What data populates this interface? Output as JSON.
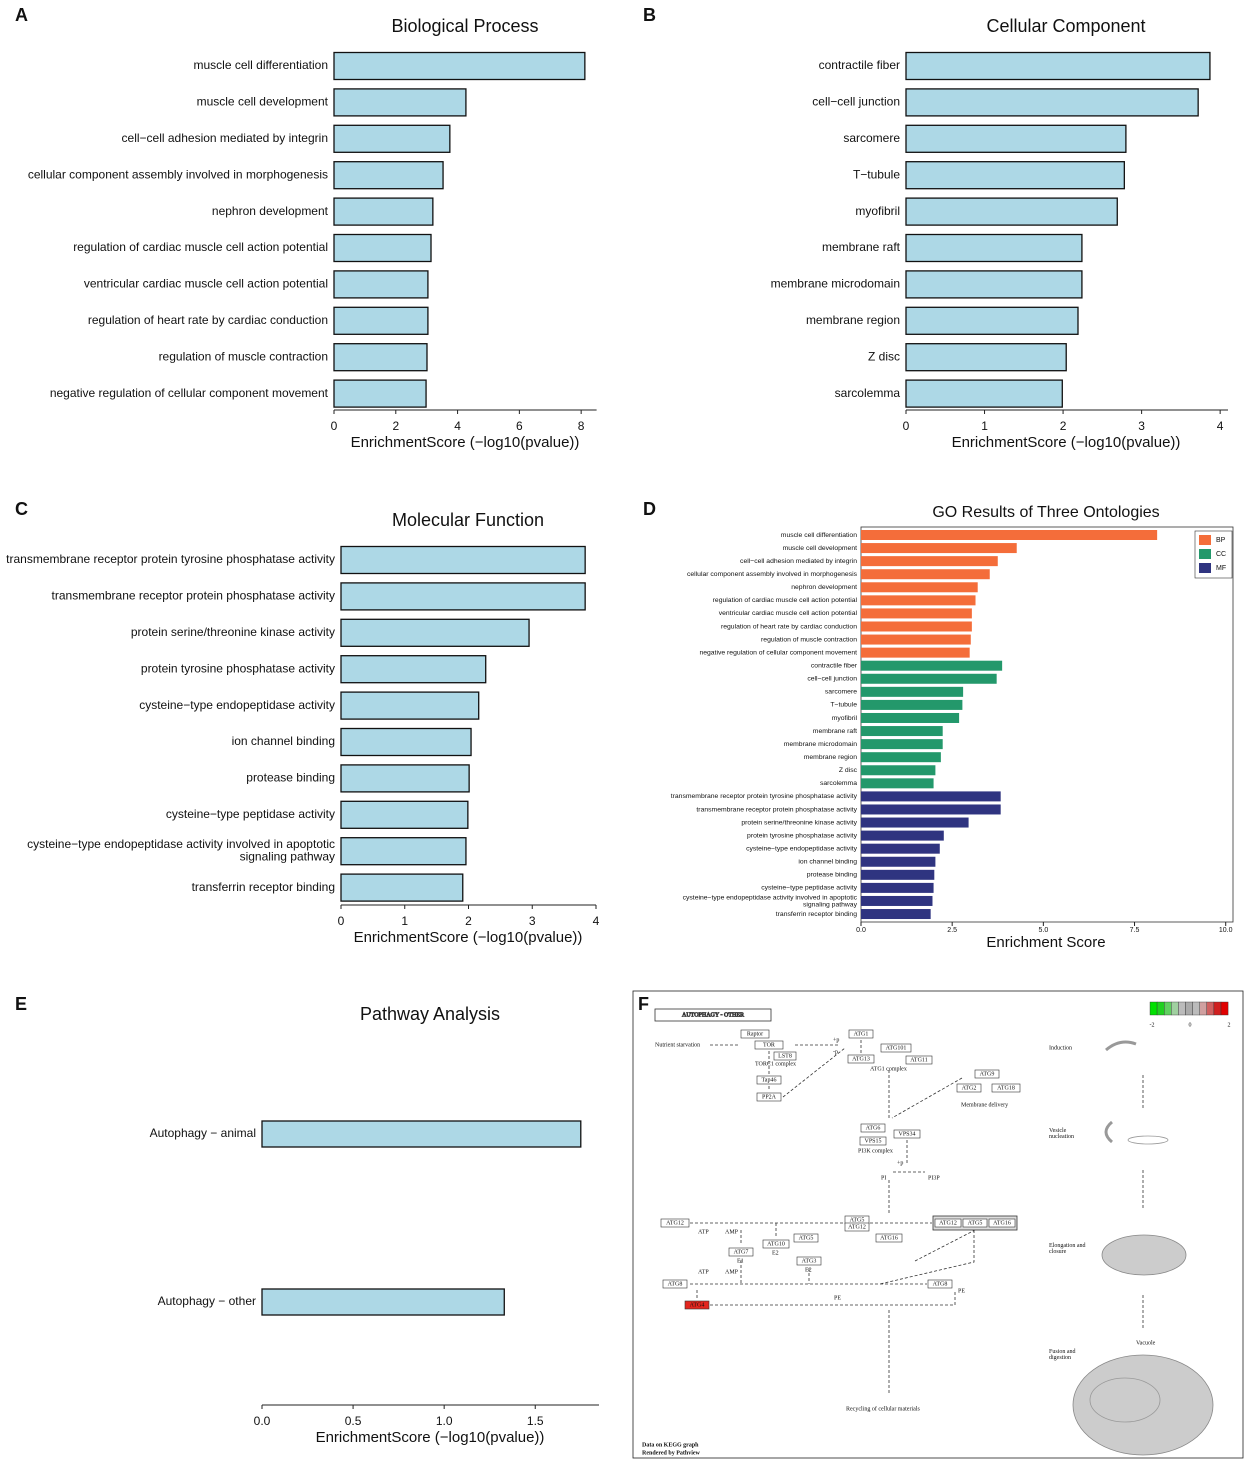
{
  "chart_data": [
    {
      "panel": "A",
      "type": "bar",
      "horizontal": true,
      "title": "Biological Process",
      "xlabel": "EnrichmentScore (−log10(pvalue))",
      "color": "#add8e6",
      "categories": [
        "muscle cell differentiation",
        "muscle cell development",
        "cell−cell adhesion mediated by integrin",
        "cellular component assembly involved in morphogenesis",
        "nephron development",
        "regulation of cardiac muscle cell action potential",
        "ventricular cardiac muscle cell action potential",
        "regulation of heart rate by cardiac conduction",
        "regulation of muscle contraction",
        "negative regulation of cellular component movement"
      ],
      "values": [
        8.12,
        4.27,
        3.75,
        3.53,
        3.2,
        3.14,
        3.04,
        3.04,
        3.01,
        2.98
      ],
      "xlim": [
        0,
        8.5
      ],
      "xticks": [
        0,
        2,
        4,
        6,
        8
      ]
    },
    {
      "panel": "B",
      "type": "bar",
      "horizontal": true,
      "title": "Cellular Component",
      "xlabel": "EnrichmentScore (−log10(pvalue))",
      "color": "#add8e6",
      "categories": [
        "contractile fiber",
        "cell−cell junction",
        "sarcomere",
        "T−tubule",
        "myofibril",
        "membrane raft",
        "membrane microdomain",
        "membrane region",
        "Z disc",
        "sarcolemma"
      ],
      "values": [
        3.87,
        3.72,
        2.8,
        2.78,
        2.69,
        2.24,
        2.24,
        2.19,
        2.04,
        1.99
      ],
      "xlim": [
        0,
        4.1
      ],
      "xticks": [
        0,
        1,
        2,
        3,
        4
      ]
    },
    {
      "panel": "C",
      "type": "bar",
      "horizontal": true,
      "title": "Molecular Function",
      "xlabel": "EnrichmentScore (−log10(pvalue))",
      "color": "#add8e6",
      "categories": [
        "transmembrane receptor protein tyrosine phosphatase activity",
        "transmembrane receptor protein phosphatase activity",
        "protein serine/threonine kinase activity",
        "protein tyrosine phosphatase activity",
        "cysteine−type endopeptidase activity",
        "ion channel binding",
        "protease binding",
        "cysteine−type peptidase activity",
        "cysteine−type endopeptidase activity involved in apoptotic\nsignaling pathway",
        "transferrin receptor binding"
      ],
      "values": [
        3.83,
        3.83,
        2.95,
        2.27,
        2.16,
        2.04,
        2.01,
        1.99,
        1.96,
        1.91
      ],
      "xlim": [
        0,
        4
      ],
      "xticks": [
        0,
        1,
        2,
        3,
        4
      ]
    },
    {
      "panel": "D",
      "type": "bar",
      "horizontal": true,
      "title": "GO Results of Three Ontologies",
      "xlabel": "Enrichment Score",
      "legend": "top-right",
      "categories": [
        "muscle cell differentiation",
        "muscle cell development",
        "cell−cell adhesion mediated by integrin",
        "cellular component assembly involved in morphogenesis",
        "nephron development",
        "regulation of cardiac muscle cell action potential",
        "ventricular cardiac muscle cell action potential",
        "regulation of heart rate by cardiac conduction",
        "regulation of muscle contraction",
        "negative regulation of cellular component movement",
        "contractile fiber",
        "cell−cell junction",
        "sarcomere",
        "T−tubule",
        "myofibril",
        "membrane raft",
        "membrane microdomain",
        "membrane region",
        "Z disc",
        "sarcolemma",
        "transmembrane receptor protein tyrosine phosphatase activity",
        "transmembrane receptor protein phosphatase activity",
        "protein serine/threonine kinase activity",
        "protein tyrosine phosphatase activity",
        "cysteine−type endopeptidase activity",
        "ion channel binding",
        "protease binding",
        "cysteine−type peptidase activity",
        "cysteine−type endopeptidase activity involved in apoptotic\nsignaling pathway",
        "transferrin receptor binding"
      ],
      "series": [
        {
          "name": "BP",
          "color": "#f46d3a",
          "values": [
            8.12,
            4.27,
            3.75,
            3.53,
            3.2,
            3.14,
            3.04,
            3.04,
            3.01,
            2.98,
            null,
            null,
            null,
            null,
            null,
            null,
            null,
            null,
            null,
            null,
            null,
            null,
            null,
            null,
            null,
            null,
            null,
            null,
            null,
            null
          ]
        },
        {
          "name": "CC",
          "color": "#23986b",
          "values": [
            null,
            null,
            null,
            null,
            null,
            null,
            null,
            null,
            null,
            null,
            3.87,
            3.72,
            2.8,
            2.78,
            2.69,
            2.24,
            2.24,
            2.19,
            2.04,
            1.99,
            null,
            null,
            null,
            null,
            null,
            null,
            null,
            null,
            null,
            null
          ]
        },
        {
          "name": "MF",
          "color": "#2f3480",
          "values": [
            null,
            null,
            null,
            null,
            null,
            null,
            null,
            null,
            null,
            null,
            null,
            null,
            null,
            null,
            null,
            null,
            null,
            null,
            null,
            null,
            3.83,
            3.83,
            2.95,
            2.27,
            2.16,
            2.04,
            2.01,
            1.99,
            1.96,
            1.91
          ]
        }
      ],
      "xlim": [
        0,
        10.2
      ],
      "xticks": [
        {
          "value": 0,
          "label": "0.0"
        },
        {
          "value": 2.5,
          "label": "2.5"
        },
        {
          "value": 5,
          "label": "5.0"
        },
        {
          "value": 7.5,
          "label": "7.5"
        },
        {
          "value": 10,
          "label": "10.0"
        }
      ]
    },
    {
      "panel": "E",
      "type": "bar",
      "horizontal": true,
      "title": "Pathway Analysis",
      "xlabel": "EnrichmentScore (−log10(pvalue))",
      "color": "#add8e6",
      "categories": [
        "Autophagy − animal",
        "Autophagy − other"
      ],
      "values": [
        1.75,
        1.33
      ],
      "xlim": [
        0,
        1.85
      ],
      "xticks": [
        {
          "value": 0,
          "label": "0.0"
        },
        {
          "value": 0.5,
          "label": "0.5"
        },
        {
          "value": 1,
          "label": "1.0"
        },
        {
          "value": 1.5,
          "label": "1.5"
        }
      ]
    }
  ],
  "pathway": {
    "panel": "F",
    "title": "AUTOPHAGY - OTHER",
    "scale_labels": [
      "-2",
      "0",
      "2"
    ],
    "boxes": [
      {
        "label": "Raptor"
      },
      {
        "label": "TOR"
      },
      {
        "label": "LST8"
      },
      {
        "label": "Tap46"
      },
      {
        "label": "PP2A"
      },
      {
        "label": "ATG1"
      },
      {
        "label": "ATG13"
      },
      {
        "label": "ATG101"
      },
      {
        "label": "ATG11"
      },
      {
        "label": "ATG9"
      },
      {
        "label": "ATG2"
      },
      {
        "label": "ATG18"
      },
      {
        "label": "ATG6"
      },
      {
        "label": "VPS15"
      },
      {
        "label": "VPS34"
      },
      {
        "label": "ATG12"
      },
      {
        "label": "ATG5"
      },
      {
        "label": "ATG12"
      },
      {
        "label": "ATG12"
      },
      {
        "label": "ATG5"
      },
      {
        "label": "ATG16"
      },
      {
        "label": "ATG10"
      },
      {
        "label": "ATG5"
      },
      {
        "label": "ATG16"
      },
      {
        "label": "ATG7"
      },
      {
        "label": "ATG3"
      },
      {
        "label": "ATG8"
      },
      {
        "label": "ATG8"
      },
      {
        "label": "ATG4",
        "color": "#e3261f"
      }
    ],
    "texts": [
      "Nutrient starvation",
      "TORC1 complex",
      "ATG1 complex",
      "Membrane delivery",
      "PI3K complex",
      "PI",
      "PI3P",
      "+p",
      "-p",
      "+p",
      "ATP",
      "AMP",
      "ATP",
      "AMP",
      "E1",
      "E2",
      "E2",
      "PE",
      "PE",
      "Recycling of cellular materials",
      "Induction",
      "Vesicle\nnucleation",
      "Elongation and\nclosure",
      "Vacuole",
      "Fusion and\ndigestion",
      "Data on KEGG graph",
      "Rendered by Pathview"
    ]
  }
}
